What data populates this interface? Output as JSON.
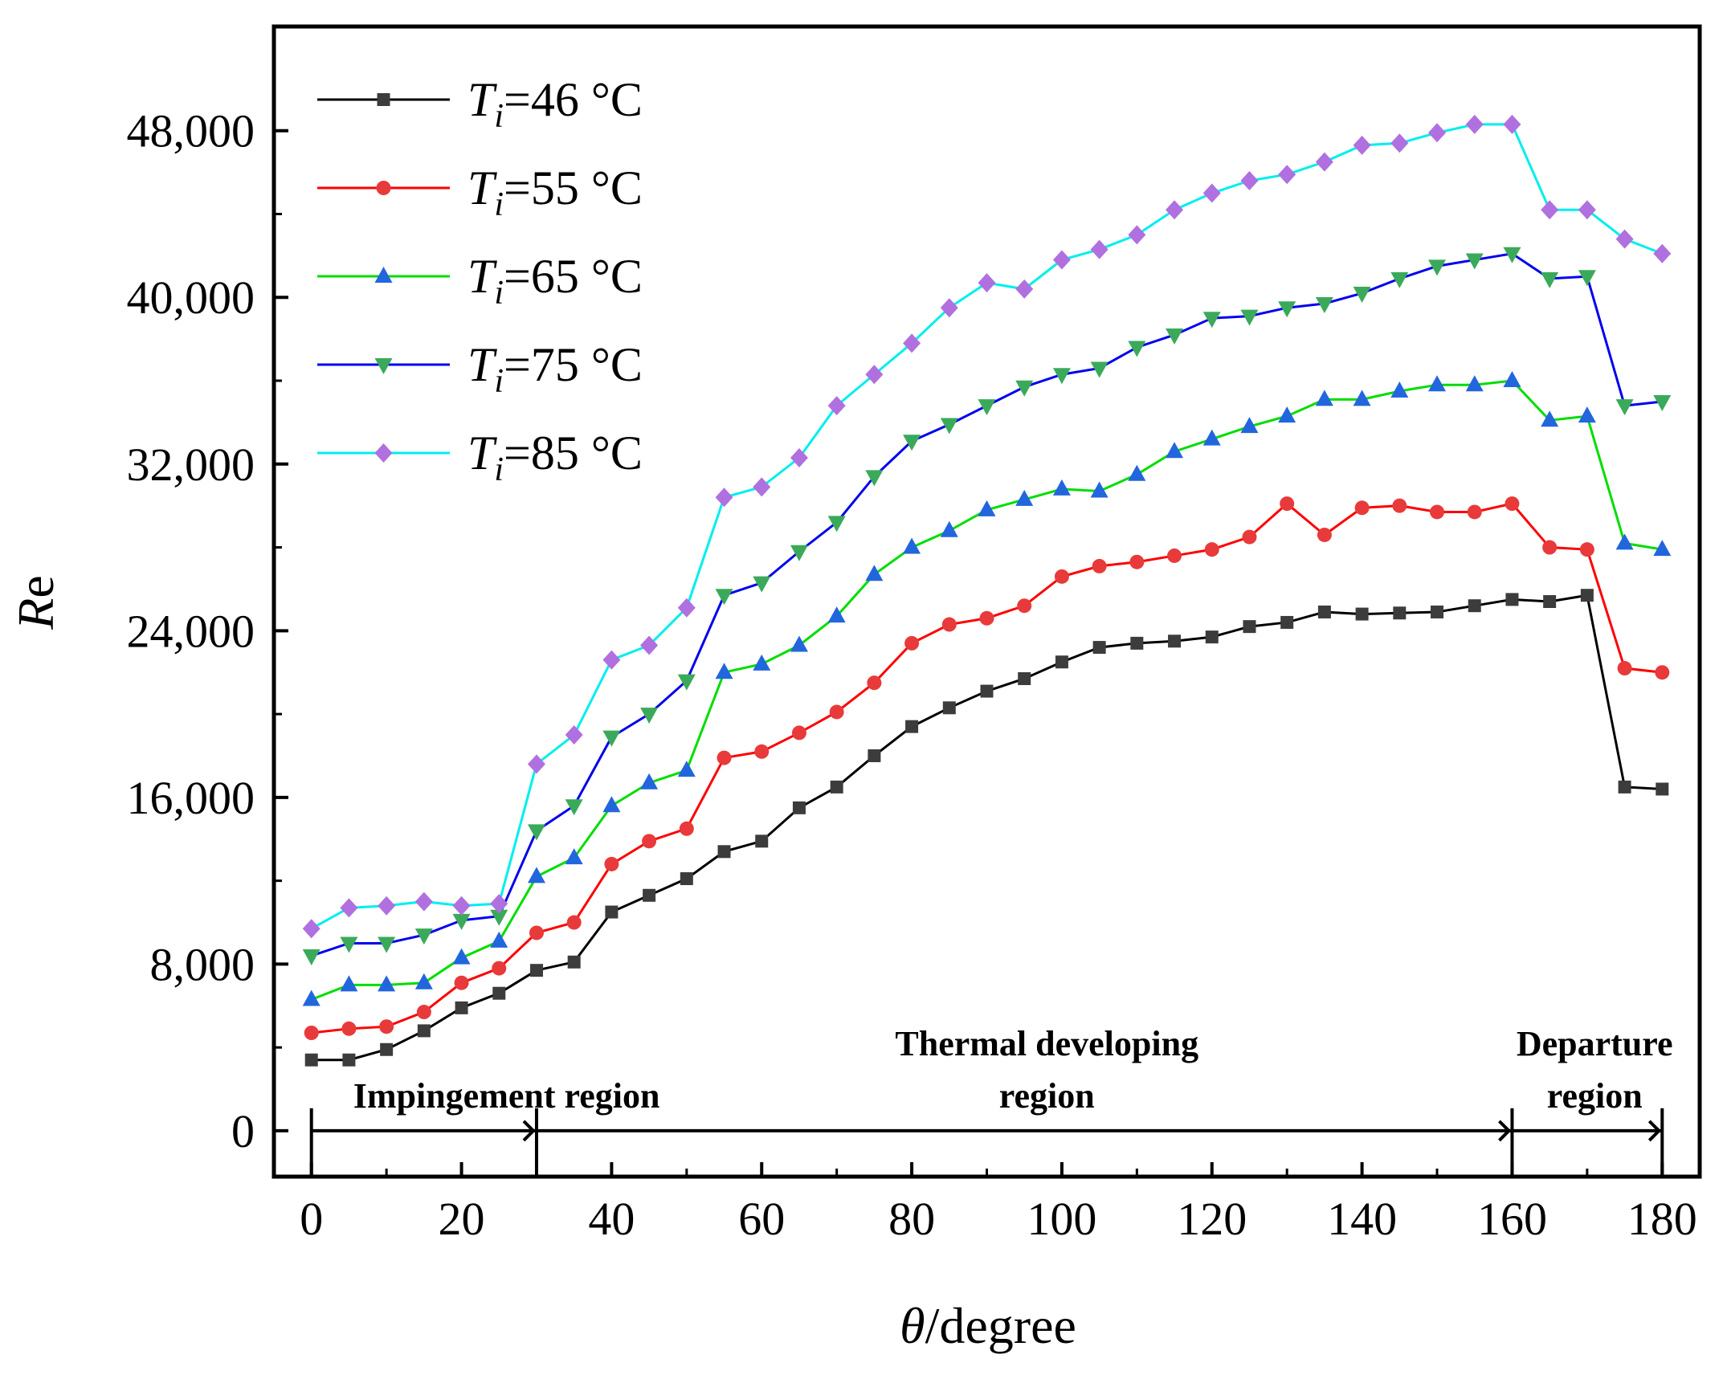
{
  "chart_data": {
    "type": "line",
    "xlabel_italic": "θ",
    "xlabel_rest": "/degree",
    "ylabel_italic": "R",
    "ylabel_rest": "e",
    "xlim": [
      -5,
      185
    ],
    "ylim": [
      -2200,
      53000
    ],
    "xticks": [
      0,
      20,
      40,
      60,
      80,
      100,
      120,
      140,
      160,
      180
    ],
    "xtick_labels": [
      "0",
      "20",
      "40",
      "60",
      "80",
      "100",
      "120",
      "140",
      "160",
      "180"
    ],
    "yticks": [
      0,
      8000,
      16000,
      24000,
      32000,
      40000,
      48000
    ],
    "ytick_labels": [
      "0",
      "8,000",
      "16,000",
      "24,000",
      "32,000",
      "40,000",
      "48,000"
    ],
    "x": [
      0,
      5,
      10,
      15,
      20,
      25,
      30,
      35,
      40,
      45,
      50,
      55,
      60,
      65,
      70,
      75,
      80,
      85,
      90,
      95,
      100,
      105,
      110,
      115,
      120,
      125,
      130,
      135,
      140,
      145,
      150,
      155,
      160,
      165,
      170,
      175,
      180
    ],
    "series": [
      {
        "name": "Ti=46 °C",
        "label_var": "T",
        "label_sub": "i",
        "label_value": "=46 °C",
        "color": "#000000",
        "marker_color": "#3c3c3c",
        "marker": "square",
        "values": [
          3400,
          3400,
          3900,
          4800,
          5900,
          6600,
          7700,
          8100,
          10500,
          11300,
          12100,
          13400,
          13900,
          15500,
          16500,
          18000,
          19400,
          20300,
          21100,
          21700,
          22500,
          23200,
          23400,
          23500,
          23700,
          24200,
          24400,
          24900,
          24800,
          24850,
          24900,
          25200,
          25500,
          25400,
          25700,
          16500,
          16400
        ]
      },
      {
        "name": "Ti=55 °C",
        "label_var": "T",
        "label_sub": "i",
        "label_value": "=55 °C",
        "color": "#ff0000",
        "marker_color": "#e83a3a",
        "marker": "circle",
        "values": [
          4700,
          4900,
          5000,
          5700,
          7100,
          7800,
          9500,
          10000,
          12800,
          13900,
          14500,
          17900,
          18200,
          19100,
          20100,
          21500,
          23400,
          24300,
          24600,
          25200,
          26600,
          27100,
          27300,
          27600,
          27900,
          28500,
          30100,
          28600,
          29900,
          30000,
          29700,
          29700,
          30100,
          28000,
          27900,
          22200,
          22000
        ]
      },
      {
        "name": "Ti=65 °C",
        "label_var": "T",
        "label_sub": "i",
        "label_value": "=65 °C",
        "color": "#00dd00",
        "marker_color": "#2266dd",
        "marker": "triangle-up",
        "values": [
          6300,
          7000,
          7000,
          7100,
          8300,
          9100,
          12200,
          13100,
          15600,
          16700,
          17300,
          22000,
          22400,
          23300,
          24700,
          26700,
          28000,
          28800,
          29800,
          30300,
          30800,
          30700,
          31500,
          32600,
          33200,
          33800,
          34300,
          35100,
          35100,
          35500,
          35800,
          35800,
          36000,
          34100,
          34300,
          28200,
          27900
        ]
      },
      {
        "name": "Ti=75 °C",
        "label_var": "T",
        "label_sub": "i",
        "label_value": "=75 °C",
        "color": "#0000ee",
        "marker_color": "#3aaa5a",
        "marker": "triangle-down",
        "values": [
          8400,
          9000,
          9000,
          9400,
          10100,
          10300,
          14400,
          15600,
          18900,
          20000,
          21600,
          25700,
          26300,
          27800,
          29200,
          31400,
          33100,
          33900,
          34800,
          35700,
          36300,
          36600,
          37600,
          38200,
          39000,
          39100,
          39500,
          39700,
          40200,
          40900,
          41500,
          41800,
          42100,
          40900,
          41000,
          34800,
          35000
        ]
      },
      {
        "name": "Ti=85 °C",
        "label_var": "T",
        "label_sub": "i",
        "label_value": "=85 °C",
        "color": "#00eeee",
        "marker_color": "#b070e0",
        "marker": "diamond",
        "values": [
          9700,
          10700,
          10800,
          11000,
          10800,
          10900,
          17600,
          19000,
          22600,
          23300,
          25100,
          30400,
          30900,
          32300,
          34800,
          36300,
          37800,
          39500,
          40700,
          40400,
          41800,
          42300,
          43000,
          44200,
          45000,
          45600,
          45900,
          46500,
          47300,
          47400,
          47900,
          48300,
          48300,
          44200,
          44200,
          42800,
          42100
        ]
      }
    ],
    "regions": [
      {
        "label_lines": [
          "Impingement region"
        ],
        "from": 0,
        "to": 30
      },
      {
        "label_lines": [
          "Thermal developing",
          "region"
        ],
        "from": 30,
        "to": 160
      },
      {
        "label_lines": [
          "Departure",
          "region"
        ],
        "from": 160,
        "to": 180
      }
    ],
    "legend_position": "top-left"
  }
}
